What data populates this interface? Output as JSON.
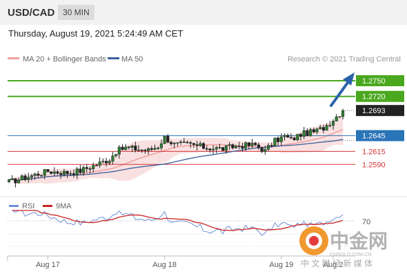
{
  "header": {
    "symbol": "USD/CAD",
    "timeframe": "30 MIN",
    "datetime": "Thursday, August 19, 2021 5:24:49 AM CET"
  },
  "legend": {
    "items": [
      {
        "label": "MA 20 + Bollinger Bands",
        "color": "#f0a0a0"
      },
      {
        "label": "MA 50",
        "color": "#3a5f9c"
      }
    ],
    "credit": "Research © 2021 Trading Central"
  },
  "rsi_legend": {
    "items": [
      {
        "label": "RSI",
        "color": "#6b8fd6"
      },
      {
        "label": "9MA",
        "color": "#cc2222"
      }
    ],
    "level_label": "70"
  },
  "watermark": {
    "text": "中金网",
    "domain": "CNGOLD.COM.CN",
    "subtitle": "中 文 财 经 新 媒 体"
  },
  "chart_data": {
    "type": "candlestick",
    "ylim": [
      1.2535,
      1.2775
    ],
    "x_tick_labels": [
      "Aug 17",
      "Aug 18",
      "Aug 19",
      "Aug 2"
    ],
    "x_tick_index": [
      12,
      48,
      84,
      100
    ],
    "levels": [
      {
        "value": 1.275,
        "label": "1.2750",
        "kind": "resistance",
        "color": "#4aa81e"
      },
      {
        "value": 1.272,
        "label": "1.2720",
        "kind": "resistance",
        "color": "#4aa81e"
      },
      {
        "value": 1.2693,
        "label": "1.2693",
        "kind": "last",
        "color": "#222222"
      },
      {
        "value": 1.2645,
        "label": "1.2645",
        "kind": "pivot",
        "color": "#2a74b8"
      },
      {
        "value": 1.2615,
        "label": "1.2615",
        "kind": "support",
        "color": "#d33333"
      },
      {
        "value": 1.259,
        "label": "1.2590",
        "kind": "support",
        "color": "#d33333"
      }
    ],
    "rsi_level": 70,
    "rsi_range": [
      20,
      80
    ],
    "series": []
  }
}
